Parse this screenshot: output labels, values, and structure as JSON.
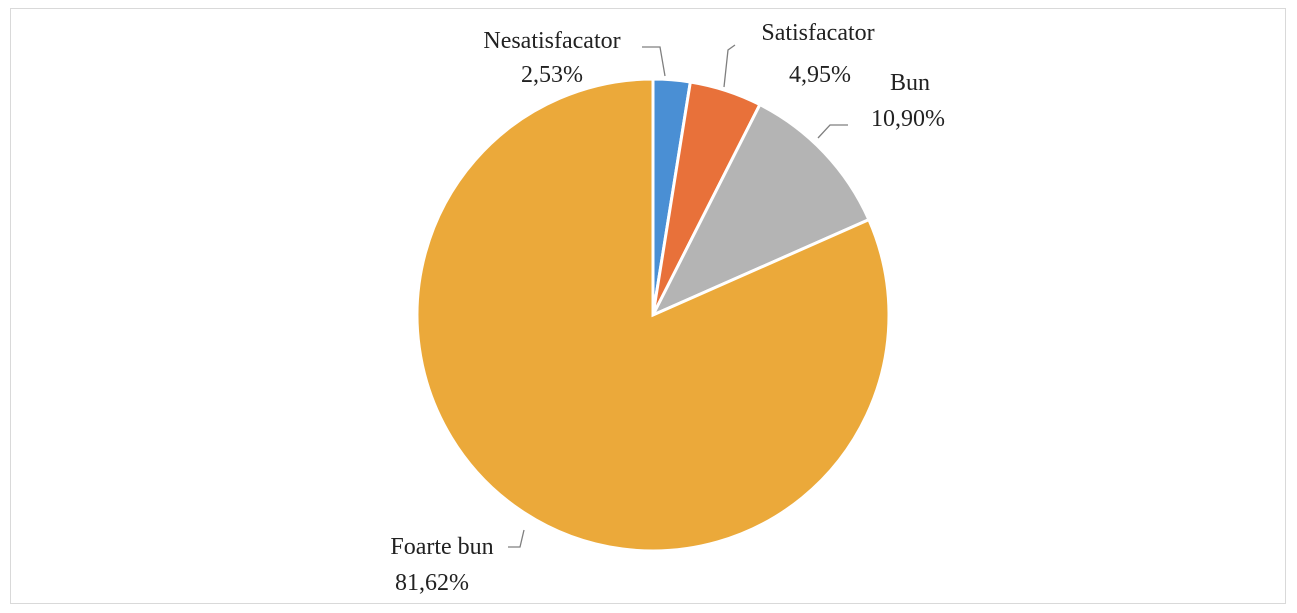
{
  "chart_data": {
    "type": "pie",
    "categories": [
      "Nesatisfacator",
      "Satisfacator",
      "Bun",
      "Foarte bun"
    ],
    "values": [
      2.53,
      4.95,
      10.9,
      81.62
    ],
    "value_labels": [
      "2,53%",
      "4,95%",
      "10,90%",
      "81,62%"
    ],
    "colors": [
      "#4a8fd4",
      "#e8713a",
      "#b4b4b4",
      "#eba93a"
    ],
    "start_angle_deg": 0,
    "direction": "clockwise",
    "legend": "none",
    "title": ""
  }
}
